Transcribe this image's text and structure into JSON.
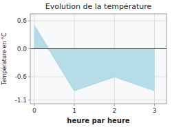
{
  "chart_data": {
    "type": "area",
    "title": "Evolution de la température",
    "xlabel": "heure par heure",
    "ylabel": "Température en °C",
    "x": [
      0,
      1,
      2,
      3
    ],
    "values": [
      0.5,
      -0.9,
      -0.6,
      -0.9
    ],
    "color": "#aed8e6",
    "xlim": [
      -0.1,
      3.3
    ],
    "ylim": [
      -1.18,
      0.75
    ],
    "xticks": [
      0,
      1,
      2,
      3
    ],
    "yticks": [
      -1.1,
      -0.6,
      {
        "value": 0,
        "label": "0.0"
      },
      0.6
    ],
    "grid": true
  }
}
